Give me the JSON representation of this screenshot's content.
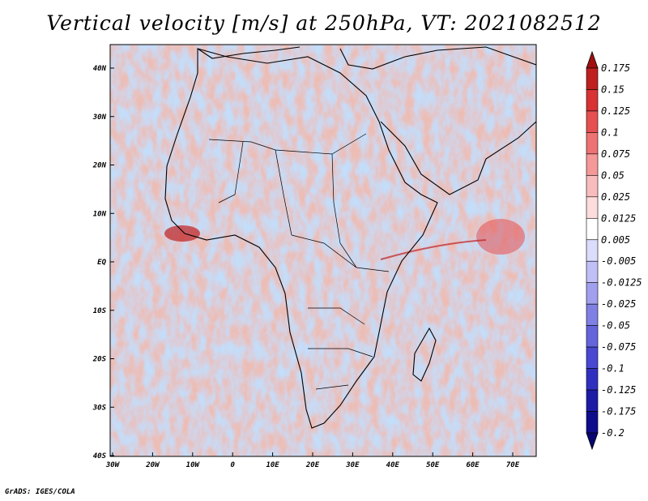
{
  "title": "Vertical velocity [m/s] at 250hPa, VT: 2021082512",
  "credit": "GrADS: IGES/COLA",
  "map": {
    "lat_ticks": [
      "40N",
      "30N",
      "20N",
      "10N",
      "EQ",
      "10S",
      "20S",
      "30S",
      "40S"
    ],
    "lon_ticks": [
      "30W",
      "20W",
      "10W",
      "0",
      "10E",
      "20E",
      "30E",
      "40E",
      "50E",
      "60E",
      "70E"
    ]
  },
  "colorbar": {
    "labels": [
      "0.175",
      "0.15",
      "0.125",
      "0.1",
      "0.075",
      "0.05",
      "0.025",
      "0.0125",
      "0.005",
      "-0.005",
      "-0.0125",
      "-0.025",
      "-0.05",
      "-0.075",
      "-0.1",
      "-0.125",
      "-0.175",
      "-0.2"
    ],
    "colors": [
      "#a01010",
      "#c02020",
      "#d83232",
      "#e65050",
      "#ee7272",
      "#f59898",
      "#f9bcbc",
      "#fcdcdc",
      "#ffffff",
      "#dcdcfc",
      "#c0c0f6",
      "#a0a0ee",
      "#8080e4",
      "#6464dc",
      "#4848d2",
      "#3030c0",
      "#1c1ca6",
      "#0e0e8c",
      "#060670"
    ]
  }
}
